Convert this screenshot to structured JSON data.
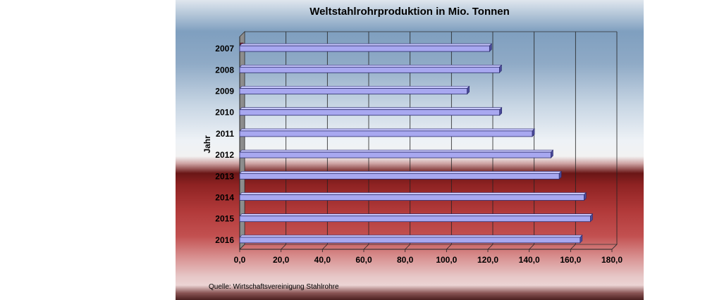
{
  "chart_data": {
    "type": "bar",
    "orientation": "horizontal",
    "title": "Weltstahlrohrproduktion in Mio. Tonnen",
    "ylabel": "Jahr",
    "xlabel": "",
    "categories": [
      "2007",
      "2008",
      "2009",
      "2010",
      "2011",
      "2012",
      "2013",
      "2014",
      "2015",
      "2016"
    ],
    "values": [
      120.8,
      125.6,
      110.0,
      125.7,
      141.5,
      150.5,
      154.5,
      166.5,
      169.6,
      164.6
    ],
    "xlim": [
      0,
      180
    ],
    "xticks": [
      "0,0",
      "20,0",
      "40,0",
      "60,0",
      "80,0",
      "100,0",
      "120,0",
      "140,0",
      "160,0",
      "180,0"
    ],
    "grid": true,
    "legend": "none",
    "bar_color": "#a8a8f0",
    "bar_edge_color": "#2c2c6c"
  },
  "source_note": "Quelle: Wirtschaftsvereinigung Stahlrohre"
}
